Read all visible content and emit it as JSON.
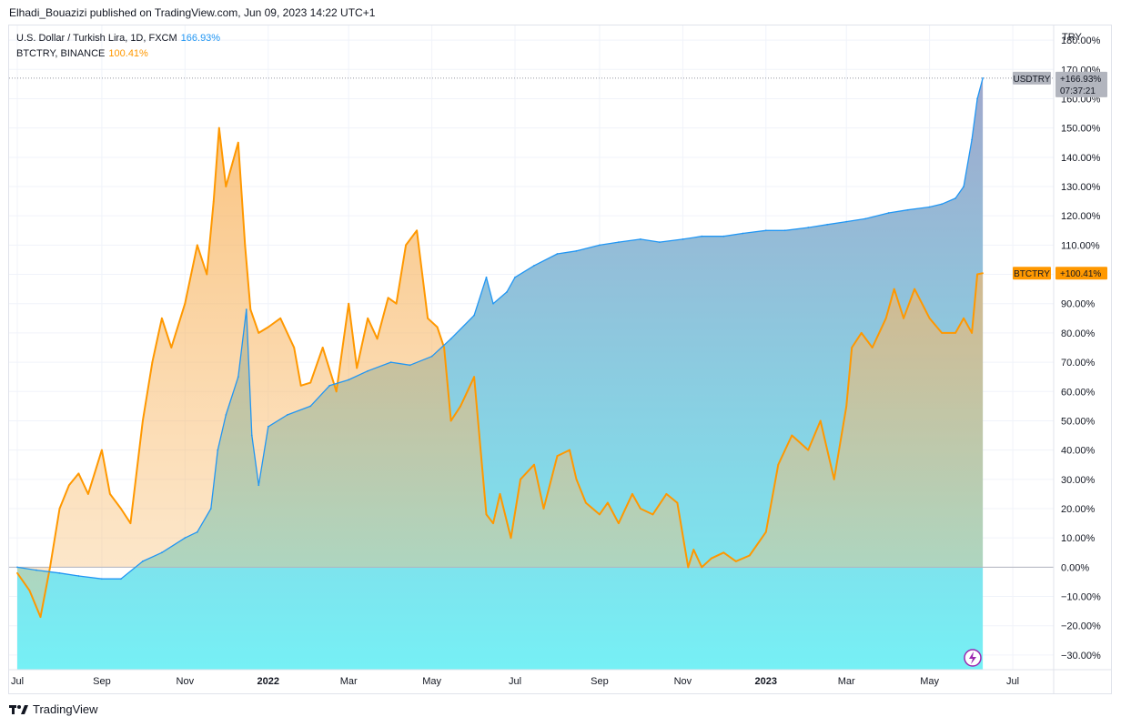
{
  "publisher_line": "Elhadi_Bouazizi published on TradingView.com, Jun 09, 2023 14:22 UTC+1",
  "legend": [
    {
      "name": "U.S. Dollar / Turkish Lira, 1D, FXCM",
      "value": "166.93%",
      "color": "#2196f3"
    },
    {
      "name": "BTCTRY, BINANCE",
      "value": "100.41%",
      "color": "#ff9800"
    }
  ],
  "brand": "TradingView",
  "chart_data": {
    "type": "area",
    "currency_label": "TRY",
    "x_tick_labels": [
      "Jul",
      "Sep",
      "Nov",
      "2022",
      "Mar",
      "May",
      "Jul",
      "Sep",
      "Nov",
      "2023",
      "Mar",
      "May",
      "Jul"
    ],
    "y_ticks": [
      -30,
      -20,
      -10,
      0,
      10,
      20,
      30,
      40,
      50,
      60,
      70,
      80,
      90,
      100,
      110,
      120,
      130,
      140,
      150,
      160,
      170,
      180
    ],
    "y_tick_labels": [
      "−30.00%",
      "−20.00%",
      "−10.00%",
      "0.00%",
      "10.00%",
      "20.00%",
      "30.00%",
      "40.00%",
      "50.00%",
      "60.00%",
      "70.00%",
      "80.00%",
      "90.00%",
      "100.00%",
      "110.00%",
      "120.00%",
      "130.00%",
      "140.00%",
      "150.00%",
      "160.00%",
      "170.00%",
      "180.00%"
    ],
    "ylim": [
      -35,
      185
    ],
    "grid": true,
    "series": [
      {
        "name": "USDTRY",
        "color": "#2196f3",
        "tag": "USDTRY",
        "last_label": "+166.93%",
        "countdown": "07:37:21",
        "x": [
          "2021-07-01",
          "2021-07-15",
          "2021-08-01",
          "2021-08-15",
          "2021-09-01",
          "2021-09-15",
          "2021-10-01",
          "2021-10-15",
          "2021-11-01",
          "2021-11-10",
          "2021-11-20",
          "2021-11-25",
          "2021-12-01",
          "2021-12-10",
          "2021-12-16",
          "2021-12-20",
          "2021-12-25",
          "2022-01-01",
          "2022-01-15",
          "2022-02-01",
          "2022-02-15",
          "2022-03-01",
          "2022-03-15",
          "2022-04-01",
          "2022-04-15",
          "2022-05-01",
          "2022-05-15",
          "2022-06-01",
          "2022-06-10",
          "2022-06-15",
          "2022-06-25",
          "2022-07-01",
          "2022-07-15",
          "2022-08-01",
          "2022-08-15",
          "2022-09-01",
          "2022-09-15",
          "2022-10-01",
          "2022-10-15",
          "2022-11-01",
          "2022-11-15",
          "2022-12-01",
          "2022-12-15",
          "2023-01-01",
          "2023-01-15",
          "2023-02-01",
          "2023-02-15",
          "2023-03-01",
          "2023-03-15",
          "2023-04-01",
          "2023-04-15",
          "2023-05-01",
          "2023-05-10",
          "2023-05-20",
          "2023-05-26",
          "2023-06-01",
          "2023-06-05",
          "2023-06-09"
        ],
        "values": [
          0,
          -1,
          -2,
          -3,
          -4,
          -4,
          2,
          5,
          10,
          12,
          20,
          40,
          52,
          65,
          88,
          45,
          28,
          48,
          52,
          55,
          62,
          64,
          67,
          70,
          69,
          72,
          78,
          86,
          99,
          90,
          94,
          99,
          103,
          107,
          108,
          110,
          111,
          112,
          111,
          112,
          113,
          113,
          114,
          115,
          115,
          116,
          117,
          118,
          119,
          121,
          122,
          123,
          124,
          126,
          130,
          146,
          160,
          167
        ]
      },
      {
        "name": "BTCTRY",
        "color": "#ff9800",
        "tag": "BTCTRY",
        "last_label": "+100.41%",
        "x": [
          "2021-07-01",
          "2021-07-10",
          "2021-07-18",
          "2021-07-25",
          "2021-08-01",
          "2021-08-08",
          "2021-08-15",
          "2021-08-22",
          "2021-09-01",
          "2021-09-07",
          "2021-09-15",
          "2021-09-22",
          "2021-10-01",
          "2021-10-08",
          "2021-10-15",
          "2021-10-22",
          "2021-11-01",
          "2021-11-10",
          "2021-11-17",
          "2021-11-22",
          "2021-11-26",
          "2021-12-01",
          "2021-12-04",
          "2021-12-10",
          "2021-12-15",
          "2021-12-19",
          "2021-12-25",
          "2022-01-01",
          "2022-01-10",
          "2022-01-20",
          "2022-01-25",
          "2022-02-01",
          "2022-02-10",
          "2022-02-20",
          "2022-03-01",
          "2022-03-07",
          "2022-03-15",
          "2022-03-22",
          "2022-03-30",
          "2022-04-05",
          "2022-04-12",
          "2022-04-20",
          "2022-04-28",
          "2022-05-05",
          "2022-05-10",
          "2022-05-15",
          "2022-05-22",
          "2022-06-01",
          "2022-06-10",
          "2022-06-15",
          "2022-06-20",
          "2022-06-28",
          "2022-07-05",
          "2022-07-15",
          "2022-07-22",
          "2022-08-01",
          "2022-08-10",
          "2022-08-15",
          "2022-08-22",
          "2022-09-01",
          "2022-09-07",
          "2022-09-15",
          "2022-09-25",
          "2022-10-01",
          "2022-10-10",
          "2022-10-20",
          "2022-10-28",
          "2022-11-05",
          "2022-11-09",
          "2022-11-15",
          "2022-11-22",
          "2022-12-01",
          "2022-12-10",
          "2022-12-20",
          "2023-01-01",
          "2023-01-10",
          "2023-01-20",
          "2023-02-01",
          "2023-02-10",
          "2023-02-20",
          "2023-03-01",
          "2023-03-05",
          "2023-03-12",
          "2023-03-20",
          "2023-03-30",
          "2023-04-05",
          "2023-04-12",
          "2023-04-20",
          "2023-05-01",
          "2023-05-10",
          "2023-05-20",
          "2023-05-26",
          "2023-06-01",
          "2023-06-05",
          "2023-06-09"
        ],
        "values": [
          -2,
          -8,
          -17,
          0,
          20,
          28,
          32,
          25,
          40,
          25,
          20,
          15,
          50,
          70,
          85,
          75,
          90,
          110,
          100,
          125,
          150,
          130,
          135,
          145,
          110,
          88,
          80,
          82,
          85,
          75,
          62,
          63,
          75,
          60,
          90,
          68,
          85,
          78,
          92,
          90,
          110,
          115,
          85,
          82,
          75,
          50,
          55,
          65,
          18,
          15,
          25,
          10,
          30,
          35,
          20,
          38,
          40,
          30,
          22,
          18,
          22,
          15,
          25,
          20,
          18,
          25,
          22,
          0,
          6,
          0,
          3,
          5,
          2,
          4,
          12,
          35,
          45,
          40,
          50,
          30,
          55,
          75,
          80,
          75,
          85,
          95,
          85,
          95,
          85,
          80,
          80,
          85,
          80,
          100,
          100.41
        ]
      }
    ]
  },
  "colors": {
    "usd_line": "#2196f3",
    "btc_line": "#ff9800",
    "usd_tag_bg": "#b2b5be",
    "btc_tag_bg": "#ff9800",
    "grid": "#f0f3fa",
    "text": "#131722"
  }
}
